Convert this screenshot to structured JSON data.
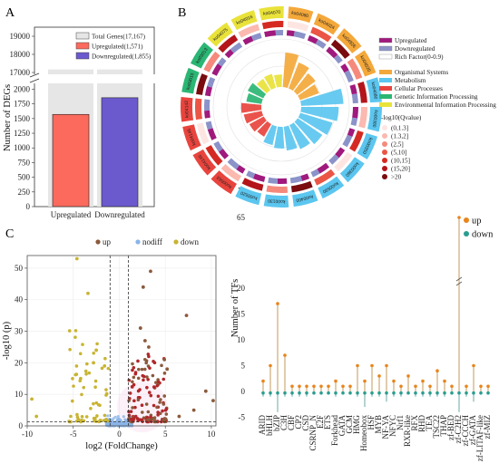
{
  "panels": {
    "a": "A",
    "b": "B",
    "c": "C",
    "d": "D"
  },
  "chart_data": [
    {
      "type": "bar",
      "panel": "A",
      "ylabel": "Number of DEGs",
      "categories": [
        "Upregulated",
        "Downregulated"
      ],
      "background_value": 17167,
      "values": [
        1571,
        1855
      ],
      "colors": [
        "#fb6a5d",
        "#6a5acd"
      ],
      "yticks_lower": [
        "0",
        "250",
        "500",
        "750",
        "1000",
        "1250",
        "1500",
        "1750",
        "2000"
      ],
      "yticks_upper": [
        "17000",
        "18000",
        "19000"
      ],
      "legend": [
        {
          "label": "Total Genes(17,167)",
          "color": "#e6e6e6"
        },
        {
          "label": "Upregulated(1,571)",
          "color": "#fb6a5d"
        },
        {
          "label": "Downregulated(1,855)",
          "color": "#6a5acd"
        }
      ]
    },
    {
      "type": "circos",
      "panel": "B",
      "legend_bars": [
        {
          "label": "Upregulated",
          "color": "#a0197d"
        },
        {
          "label": "Downregulated",
          "color": "#8b93c9"
        },
        {
          "label": "Rich Factor(0-0.9)",
          "color": "#ffffff"
        }
      ],
      "categories": [
        {
          "label": "Organismal Systems",
          "color": "#f4a83a"
        },
        {
          "label": "Metabolism",
          "color": "#5bc6ef"
        },
        {
          "label": "Cellular Processes",
          "color": "#e8443d"
        },
        {
          "label": "Genetic Information Processing",
          "color": "#2ab673"
        },
        {
          "label": "Environmental Information Processing",
          "color": "#e9e23a"
        }
      ],
      "qvalue_title": "-log10(Qvalue)",
      "qvalue_bins": [
        {
          "label": "(0,1.3]",
          "color": "#fde6e2"
        },
        {
          "label": "(1.3,2]",
          "color": "#fbb9b0"
        },
        {
          "label": "(2,5]",
          "color": "#f58a7c"
        },
        {
          "label": "(5,10]",
          "color": "#eb5546"
        },
        {
          "label": "(10,15]",
          "color": "#d52a22"
        },
        {
          "label": "(15,20]",
          "color": "#b3151a"
        },
        {
          "label": ">20",
          "color": "#7a0b0e"
        }
      ],
      "pathways": [
        {
          "id": "ko04080",
          "cat": 0,
          "rich": 0.72
        },
        {
          "id": "ko04024",
          "cat": 0,
          "rich": 0.58
        },
        {
          "id": "ko04926",
          "cat": 0,
          "rich": 0.48
        },
        {
          "id": "ko04020",
          "cat": 0,
          "rich": 0.42
        },
        {
          "id": "ko04080",
          "cat": 1,
          "rich": 0.88
        },
        {
          "id": "ko00380",
          "cat": 1,
          "rich": 0.78
        },
        {
          "id": "ko00350",
          "cat": 1,
          "rich": 0.7
        },
        {
          "id": "ko00360",
          "cat": 1,
          "rich": 0.62
        },
        {
          "id": "ko00590",
          "cat": 1,
          "rich": 0.55
        },
        {
          "id": "ko00400",
          "cat": 1,
          "rich": 0.5
        },
        {
          "id": "ko00130",
          "cat": 1,
          "rich": 0.45
        },
        {
          "id": "ko00520",
          "cat": 1,
          "rich": 0.4
        },
        {
          "id": "ko00563",
          "cat": 2,
          "rich": 0.3
        },
        {
          "id": "ko04146",
          "cat": 2,
          "rich": 0.34
        },
        {
          "id": "ko04145",
          "cat": 2,
          "rich": 0.38
        },
        {
          "id": "ko04142",
          "cat": 2,
          "rich": 0.42
        },
        {
          "id": "ko03015",
          "cat": 3,
          "rich": 0.32
        },
        {
          "id": "ko03013",
          "cat": 3,
          "rich": 0.36
        },
        {
          "id": "ko04075",
          "cat": 4,
          "rich": 0.28
        },
        {
          "id": "ko04016",
          "cat": 4,
          "rich": 0.3
        },
        {
          "id": "ko04070",
          "cat": 4,
          "rich": 0.26
        }
      ]
    },
    {
      "type": "scatter",
      "panel": "C",
      "xlabel": "log2 (FoldChange)",
      "ylabel": "-log10 (p)",
      "xlim": [
        -10,
        10.5
      ],
      "ylim": [
        0,
        54
      ],
      "xticks": [
        -10,
        -5,
        0,
        5,
        10
      ],
      "yticks": [
        0,
        10,
        20,
        30,
        40,
        50
      ],
      "thresholds": {
        "x": [
          -1,
          1
        ],
        "y": 1.3
      },
      "series": [
        {
          "name": "up",
          "color": "#8b5a3c"
        },
        {
          "name": "nodiff",
          "color": "#8ab4e8"
        },
        {
          "name": "down",
          "color": "#c8b432"
        }
      ]
    },
    {
      "type": "lollipop",
      "panel": "D",
      "ylabel": "Number of TFs",
      "series": [
        {
          "name": "up",
          "color": "#e8851c",
          "stem": "#c49a5a"
        },
        {
          "name": "down",
          "color": "#2a9d8f",
          "stem": "#6aa8a6"
        }
      ],
      "yticks": [
        "-5",
        "0",
        "5",
        "10",
        "15",
        "20",
        "65"
      ],
      "categories": [
        "ARID",
        "bHLH",
        "bZIP",
        "C3H",
        "CBF",
        "CP2",
        "CSD",
        "CSRNP_N",
        "E2F",
        "ETS",
        "Forkhead",
        "GATA",
        "GCM",
        "HMG",
        "Homeobox",
        "HSF",
        "MYB",
        "NF-YA",
        "NFYC",
        "Nrf1",
        "RXR-like",
        "RFX",
        "RHD",
        "TEA",
        "TSC22",
        "THAP",
        "zf-BED",
        "zf-C2H2",
        "zf-CCCH",
        "zf-GATA",
        "zf-LITAF-like",
        "zf-MIZ"
      ],
      "up": [
        2,
        5,
        17,
        7,
        1,
        1,
        1,
        1,
        1,
        1,
        2,
        1,
        1,
        5,
        2,
        5,
        3,
        5,
        2,
        1,
        3,
        1,
        2,
        1,
        4,
        2,
        1,
        65,
        1,
        5,
        1,
        1
      ],
      "down": [
        1,
        1,
        4,
        1,
        1,
        1,
        1,
        0,
        0,
        0,
        1,
        0,
        0,
        1,
        3,
        1,
        1,
        2,
        1,
        1,
        0,
        1,
        1,
        1,
        1,
        1,
        0,
        4,
        1,
        2,
        0,
        0
      ]
    }
  ]
}
